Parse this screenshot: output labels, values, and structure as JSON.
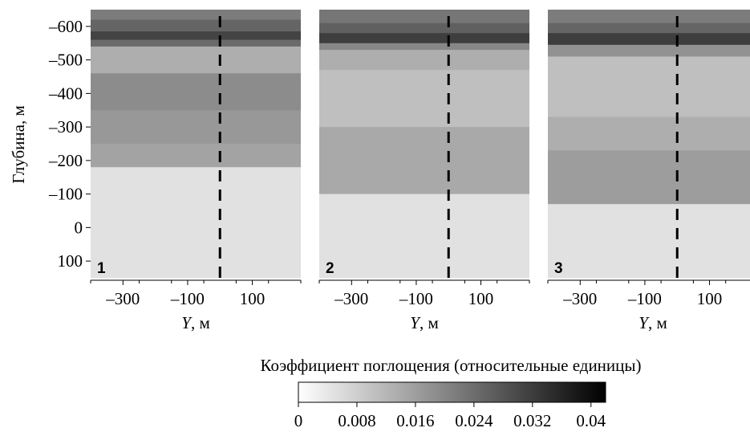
{
  "chart_data": {
    "type": "heatmap",
    "ylabel": "Глубина, м",
    "ylim": [
      150,
      -650
    ],
    "yticks": [
      {
        "value": -600,
        "label": "–600"
      },
      {
        "value": -500,
        "label": "–500"
      },
      {
        "value": -400,
        "label": "–400"
      },
      {
        "value": -300,
        "label": "–300"
      },
      {
        "value": -200,
        "label": "–200"
      },
      {
        "value": -100,
        "label": "–100"
      },
      {
        "value": 0,
        "label": "0"
      },
      {
        "value": 100,
        "label": "100"
      }
    ],
    "xlim": [
      -400,
      250
    ],
    "xticks": [
      {
        "value": -300,
        "label": "–300"
      },
      {
        "value": -100,
        "label": "–100"
      },
      {
        "value": 100,
        "label": "100"
      }
    ],
    "xminor": [
      -400,
      -250,
      -150,
      -50,
      50,
      150,
      250
    ],
    "xlabel_var": "Y",
    "xlabel_unit": ", м",
    "dashed_line_x": 0,
    "panels": [
      {
        "label": "1",
        "layers": [
          {
            "top": -650,
            "bottom": -620,
            "value": 0.02
          },
          {
            "top": -620,
            "bottom": -585,
            "value": 0.024
          },
          {
            "top": -585,
            "bottom": -560,
            "value": 0.03
          },
          {
            "top": -560,
            "bottom": -540,
            "value": 0.023
          },
          {
            "top": -540,
            "bottom": -460,
            "value": 0.011
          },
          {
            "top": -460,
            "bottom": -350,
            "value": 0.017
          },
          {
            "top": -350,
            "bottom": -250,
            "value": 0.015
          },
          {
            "top": -250,
            "bottom": -180,
            "value": 0.013
          },
          {
            "top": -180,
            "bottom": 150,
            "value": 0.002
          }
        ]
      },
      {
        "label": "2",
        "layers": [
          {
            "top": -650,
            "bottom": -610,
            "value": 0.021
          },
          {
            "top": -610,
            "bottom": -580,
            "value": 0.025
          },
          {
            "top": -580,
            "bottom": -550,
            "value": 0.031
          },
          {
            "top": -550,
            "bottom": -530,
            "value": 0.018
          },
          {
            "top": -530,
            "bottom": -470,
            "value": 0.011
          },
          {
            "top": -470,
            "bottom": -300,
            "value": 0.008
          },
          {
            "top": -300,
            "bottom": -100,
            "value": 0.012
          },
          {
            "top": -100,
            "bottom": 150,
            "value": 0.002
          }
        ]
      },
      {
        "label": "3",
        "layers": [
          {
            "top": -650,
            "bottom": -610,
            "value": 0.02
          },
          {
            "top": -610,
            "bottom": -580,
            "value": 0.024
          },
          {
            "top": -580,
            "bottom": -545,
            "value": 0.031
          },
          {
            "top": -545,
            "bottom": -510,
            "value": 0.016
          },
          {
            "top": -510,
            "bottom": -330,
            "value": 0.008
          },
          {
            "top": -330,
            "bottom": -230,
            "value": 0.011
          },
          {
            "top": -230,
            "bottom": -70,
            "value": 0.014
          },
          {
            "top": -70,
            "bottom": 150,
            "value": 0.002
          }
        ]
      }
    ],
    "colorbar": {
      "title": "Коэффициент поглощения (относительные единицы)",
      "min": 0,
      "max": 0.042,
      "ticks": [
        {
          "value": 0,
          "label": "0"
        },
        {
          "value": 0.008,
          "label": "0.008"
        },
        {
          "value": 0.016,
          "label": "0.016"
        },
        {
          "value": 0.024,
          "label": "0.024"
        },
        {
          "value": 0.032,
          "label": "0.032"
        },
        {
          "value": 0.04,
          "label": "0.04"
        }
      ],
      "color_low": "#ffffff",
      "color_high": "#000000"
    }
  }
}
